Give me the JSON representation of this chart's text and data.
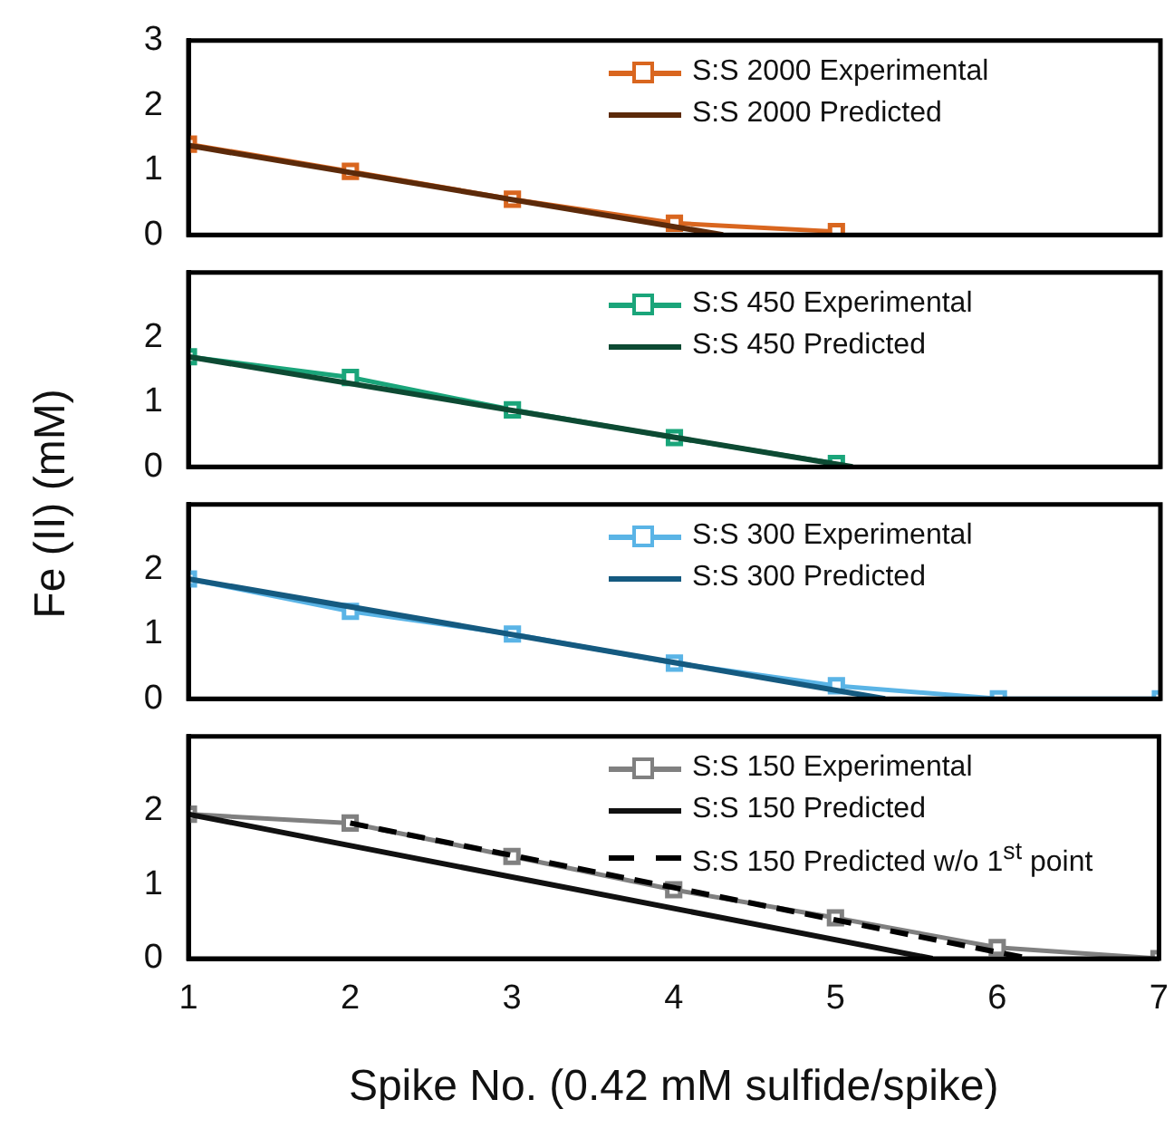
{
  "chart_data": [
    {
      "type": "line",
      "ylabel": "Fe (II) (mM)",
      "xlim": [
        1,
        7
      ],
      "xticks": [
        1,
        2,
        3,
        4,
        5,
        6,
        7
      ],
      "ylim": [
        0,
        3
      ],
      "yticks": [
        0,
        1,
        2,
        3
      ],
      "tick_labels": "y",
      "legend": "top right",
      "grid": false,
      "x": [
        1,
        2,
        3,
        4,
        5
      ],
      "series": [
        {
          "name": "S:S 2000 Experimental",
          "color": "#d9661f",
          "marker": "square",
          "values": [
            1.4,
            0.98,
            0.55,
            0.18,
            0.05
          ]
        },
        {
          "name": "S:S 2000 Predicted",
          "color": "#5c2a0a",
          "marker": "none",
          "x": [
            1,
            4.3
          ],
          "values": [
            1.38,
            0
          ]
        }
      ]
    },
    {
      "type": "line",
      "xlim": [
        1,
        7
      ],
      "xticks": [
        1,
        2,
        3,
        4,
        5,
        6,
        7
      ],
      "ylim": [
        0,
        3
      ],
      "yticks": [
        0,
        1,
        2
      ],
      "tick_labels": "y",
      "legend": "top right",
      "grid": false,
      "x": [
        1,
        2,
        3,
        4,
        5
      ],
      "series": [
        {
          "name": "S:S 450 Experimental",
          "color": "#1aa57a",
          "marker": "square",
          "values": [
            1.7,
            1.38,
            0.88,
            0.45,
            0.05
          ]
        },
        {
          "name": "S:S 450 Predicted",
          "color": "#0d4a33",
          "marker": "none",
          "x": [
            1,
            5.1
          ],
          "values": [
            1.7,
            0
          ]
        }
      ]
    },
    {
      "type": "line",
      "xlim": [
        1,
        7
      ],
      "xticks": [
        1,
        2,
        3,
        4,
        5,
        6,
        7
      ],
      "ylim": [
        0,
        3
      ],
      "yticks": [
        0,
        1,
        2
      ],
      "tick_labels": "y",
      "legend": "top right",
      "grid": false,
      "x": [
        1,
        2,
        3,
        4,
        5,
        6,
        7
      ],
      "series": [
        {
          "name": "S:S 300 Experimental",
          "color": "#5ab4e6",
          "marker": "square",
          "values": [
            1.85,
            1.35,
            1.0,
            0.55,
            0.2,
            0,
            0
          ]
        },
        {
          "name": "S:S 300 Predicted",
          "color": "#155a80",
          "marker": "none",
          "x": [
            1,
            5.3
          ],
          "values": [
            1.85,
            0
          ]
        }
      ]
    },
    {
      "type": "line",
      "xlabel": "Spike No. (0.42 mM sulfide/spike)",
      "xlim": [
        1,
        7
      ],
      "xticks": [
        1,
        2,
        3,
        4,
        5,
        6,
        7
      ],
      "ylim": [
        0,
        3
      ],
      "yticks": [
        0,
        1,
        2
      ],
      "legend": "top right",
      "grid": false,
      "x": [
        1,
        2,
        3,
        4,
        5,
        6,
        7
      ],
      "series": [
        {
          "name": "S:S 150 Experimental",
          "color": "#808080",
          "marker": "square",
          "values": [
            1.95,
            1.83,
            1.38,
            0.93,
            0.55,
            0.15,
            0
          ]
        },
        {
          "name": "S:S 150 Predicted",
          "color": "#111111",
          "marker": "none",
          "x": [
            1,
            5.6
          ],
          "values": [
            1.95,
            0
          ]
        },
        {
          "name": "S:S 150 Predicted w/o 1$^{st}$ point",
          "color": "#000000",
          "marker": "none",
          "line_style": "dashed",
          "x": [
            2,
            6.2
          ],
          "values": [
            1.83,
            0
          ]
        }
      ]
    }
  ]
}
